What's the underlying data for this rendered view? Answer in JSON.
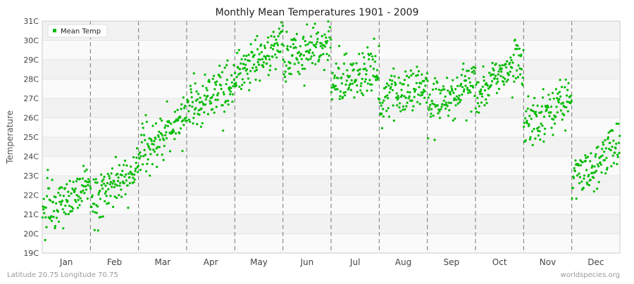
{
  "chart_data": {
    "type": "scatter",
    "title": "Monthly Mean Temperatures 1901 - 2009",
    "ylabel": "Temperature",
    "xlabel": "",
    "ylim": [
      19,
      31
    ],
    "y_ticks": [
      "19C",
      "20C",
      "21C",
      "22C",
      "23C",
      "24C",
      "25C",
      "26C",
      "27C",
      "28C",
      "29C",
      "30C",
      "31C"
    ],
    "months": [
      "Jan",
      "Feb",
      "Mar",
      "Apr",
      "May",
      "Jun",
      "Jul",
      "Aug",
      "Sep",
      "Oct",
      "Nov",
      "Dec"
    ],
    "legend": {
      "label": "Mean Temp",
      "position": "top-left"
    },
    "marker_color": "#00bb00",
    "grid": true,
    "years": [
      1901,
      2009
    ],
    "series": [
      {
        "name": "Mean Temp",
        "monthly_trend": [
          {
            "month": "Jan",
            "start": 21.3,
            "end": 22.4
          },
          {
            "month": "Feb",
            "start": 21.6,
            "end": 23.4
          },
          {
            "month": "Mar",
            "start": 24.3,
            "end": 26.0
          },
          {
            "month": "Apr",
            "start": 26.4,
            "end": 27.8
          },
          {
            "month": "May",
            "start": 28.3,
            "end": 29.9
          },
          {
            "month": "Jun",
            "start": 29.0,
            "end": 30.0
          },
          {
            "month": "Jul",
            "start": 27.7,
            "end": 28.6
          },
          {
            "month": "Aug",
            "start": 26.8,
            "end": 27.7
          },
          {
            "month": "Sep",
            "start": 26.7,
            "end": 27.8
          },
          {
            "month": "Oct",
            "start": 27.3,
            "end": 29.1
          },
          {
            "month": "Nov",
            "start": 25.6,
            "end": 27.0
          },
          {
            "month": "Dec",
            "start": 22.9,
            "end": 24.5
          }
        ],
        "spread": 0.65
      }
    ]
  },
  "footer": {
    "location": "Latitude 20.75 Longitude 70.75",
    "source": "worldspecies.org"
  }
}
